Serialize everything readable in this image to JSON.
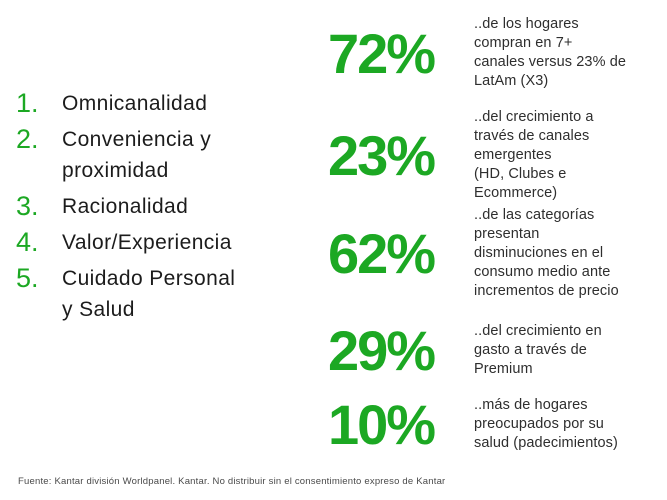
{
  "colors": {
    "green": "#1CA823",
    "text_dark": "#1c1c1c",
    "desc_text": "#2e2e2e",
    "footer_text": "#4a4a4a"
  },
  "list": {
    "items": [
      {
        "number": "1.",
        "label": "Omnicanalidad"
      },
      {
        "number": "2.",
        "label": "Conveniencia y\nproximidad"
      },
      {
        "number": "3.",
        "label": "Racionalidad"
      },
      {
        "number": "4.",
        "label": "Valor/Experiencia"
      },
      {
        "number": "5.",
        "label": "Cuidado Personal\ny Salud"
      }
    ]
  },
  "stats": [
    {
      "value": "72%",
      "description": "..de los hogares\ncompran en 7+\ncanales versus 23% de\nLatAm (X3)"
    },
    {
      "value": "23%",
      "description": "..del crecimiento a\ntravés de canales\nemergentes\n(HD, Clubes e\nEcommerce)"
    },
    {
      "value": "62%",
      "description": "..de las categorías\npresentan\ndisminuciones en el\nconsumo medio ante\nincrementos de precio"
    },
    {
      "value": "29%",
      "description": "..del crecimiento en\ngasto a través de\nPremium"
    },
    {
      "value": "10%",
      "description": "..más de hogares\npreocupados por su\nsalud (padecimientos)"
    }
  ],
  "footer": {
    "text": "Fuente: Kantar división Worldpanel. Kantar. No distribuir sin el consentimiento expreso de Kantar"
  }
}
